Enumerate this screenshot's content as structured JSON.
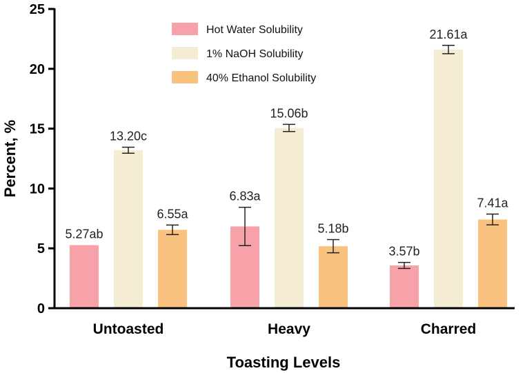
{
  "chart_data": {
    "type": "bar",
    "title": "",
    "xlabel": "Toasting Levels",
    "ylabel": "Percent, %",
    "ylim": [
      0,
      25
    ],
    "yticks": [
      0,
      5,
      10,
      15,
      20,
      25
    ],
    "grid": false,
    "legend_position": "top-center",
    "categories": [
      "Untoasted",
      "Heavy",
      "Charred"
    ],
    "series": [
      {
        "name": "Hot Water Solubility",
        "color": "#f7a1a8",
        "values": [
          5.27,
          6.83,
          3.57
        ],
        "errors": [
          0,
          1.6,
          0.25
        ],
        "labels": [
          "5.27ab",
          "6.83a",
          "3.57b"
        ]
      },
      {
        "name": "1% NaOH Solubility",
        "color": "#f4ecd3",
        "values": [
          13.2,
          15.06,
          21.61
        ],
        "errors": [
          0.25,
          0.3,
          0.35
        ],
        "labels": [
          "13.20c",
          "15.06b",
          "21.61a"
        ]
      },
      {
        "name": "40% Ethanol Solubility",
        "color": "#f9c27e",
        "values": [
          6.55,
          5.18,
          7.41
        ],
        "errors": [
          0.4,
          0.55,
          0.45
        ],
        "labels": [
          "6.55a",
          "5.18b",
          "7.41a"
        ]
      }
    ]
  }
}
